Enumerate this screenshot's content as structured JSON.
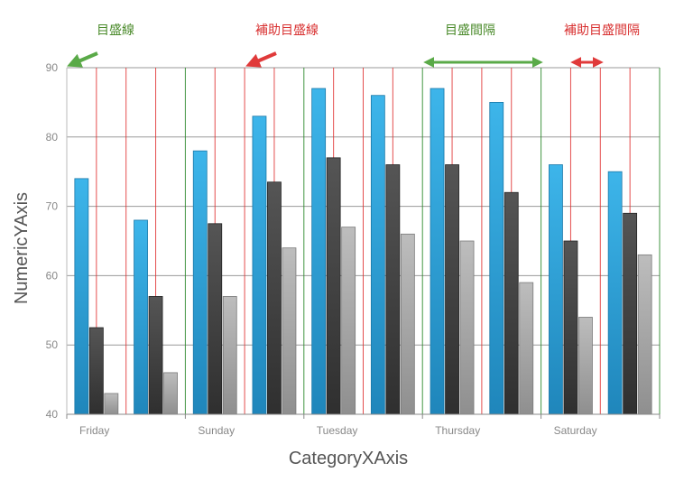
{
  "chart_data": {
    "type": "bar",
    "title": "",
    "xlabel": "CategoryXAxis",
    "ylabel": "NumericYAxis",
    "ylim": [
      40,
      90
    ],
    "y_major_ticks": [
      40,
      50,
      60,
      70,
      80,
      90
    ],
    "categories": [
      "Friday",
      "",
      "Sunday",
      "",
      "Tuesday",
      "",
      "Thursday",
      "",
      "Saturday",
      ""
    ],
    "series": [
      {
        "values": [
          74,
          68,
          78,
          83,
          87,
          86,
          87,
          85,
          76,
          75
        ],
        "color": "#2e9fdb"
      },
      {
        "values": [
          52.5,
          57,
          67.5,
          73.5,
          77,
          76,
          76,
          72,
          65,
          69
        ],
        "color": "#444444"
      },
      {
        "values": [
          43,
          46,
          57,
          64,
          67,
          66,
          65,
          59,
          54,
          63
        ],
        "color": "#a8a8a8"
      }
    ],
    "major_gridline_color": "#2e8b2e",
    "minor_gridline_color": "#e03030",
    "annotations": [
      {
        "text": "目盛線",
        "color": "#4a8a2a",
        "arrow": "green"
      },
      {
        "text": "補助目盛線",
        "color": "#d83030",
        "arrow": "red"
      },
      {
        "text": "目盛間隔",
        "color": "#4a8a2a",
        "arrow": "green-double"
      },
      {
        "text": "補助目盛間隔",
        "color": "#d83030",
        "arrow": "red-double"
      }
    ]
  }
}
